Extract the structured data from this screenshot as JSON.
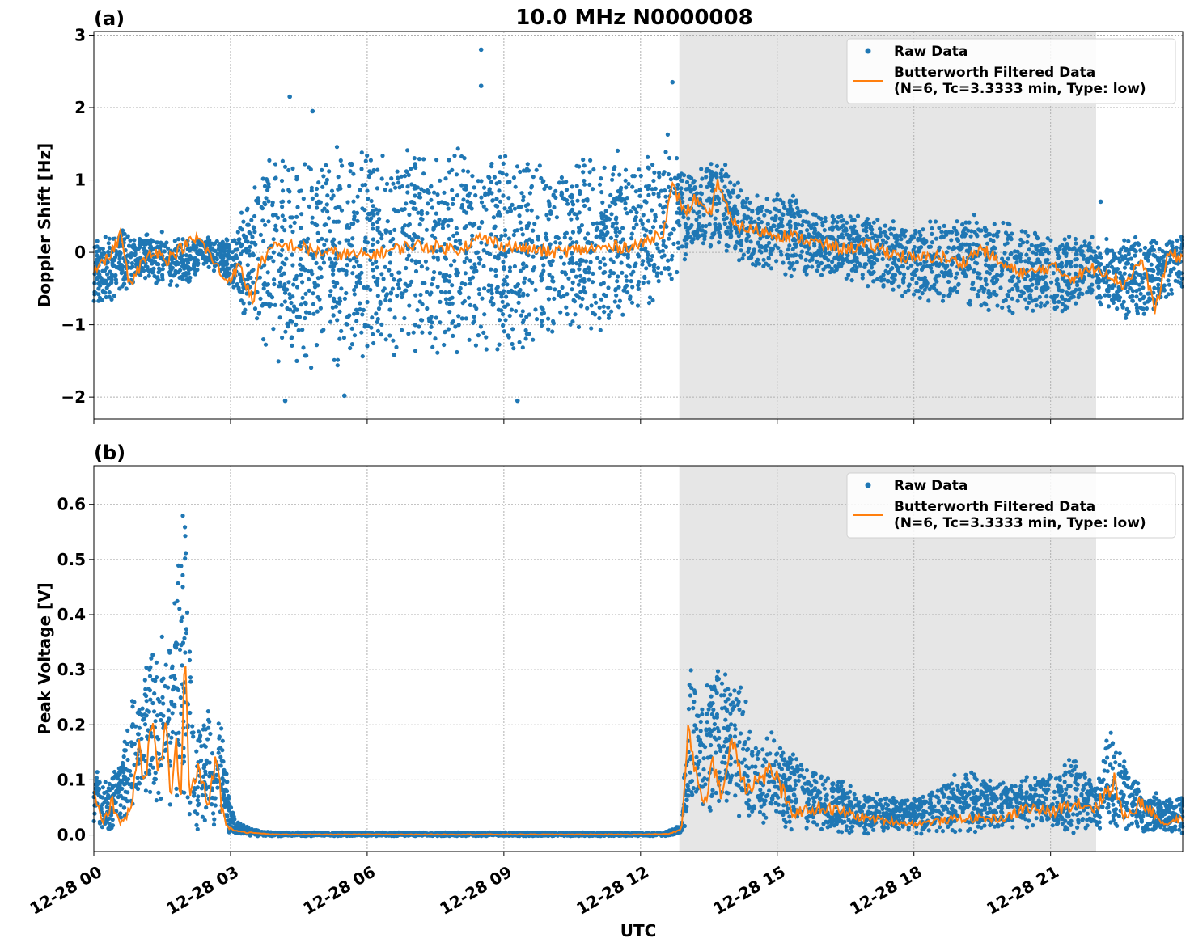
{
  "figure": {
    "title": "10.0 MHz N0000008",
    "xlabel": "UTC"
  },
  "colors": {
    "raw": "#1f77b4",
    "filtered": "#ff7f0e",
    "shade": "#e6e6e6"
  },
  "chart_data": [
    {
      "type": "scatter",
      "panel_label": "(a)",
      "title": "10.0 MHz N0000008",
      "ylabel": "Doppler Shift [Hz]",
      "xlabel": "",
      "x_range_hours": [
        0,
        23.9
      ],
      "ylim": [
        -2.3,
        3.05
      ],
      "yticks": [
        -2,
        -1,
        0,
        1,
        2,
        3
      ],
      "ytick_labels": [
        "−2",
        "−1",
        "0",
        "1",
        "2",
        "3"
      ],
      "grid": true,
      "legend": "top-right",
      "shaded_region_hours": [
        12.85,
        22.0
      ],
      "series": [
        {
          "name": "Raw Data",
          "marker": "dot",
          "envelope_x_hours": [
            0,
            0.5,
            1,
            1.5,
            2,
            2.5,
            3,
            3.6,
            4,
            5,
            6,
            7,
            8,
            9,
            10,
            11,
            12,
            12.6,
            13.1,
            13.7,
            14.5,
            15,
            16,
            17,
            18,
            19,
            20,
            21,
            22,
            23,
            23.9
          ],
          "envelope_upper": [
            0.2,
            0.4,
            0.3,
            0.3,
            0.2,
            0.25,
            0.2,
            1.2,
            1.5,
            1.6,
            1.5,
            1.5,
            1.6,
            1.5,
            1.4,
            1.4,
            1.5,
            1.7,
            1.1,
            1.4,
            0.8,
            0.9,
            0.6,
            0.55,
            0.45,
            0.6,
            0.5,
            0.3,
            0.25,
            0.3,
            0.25
          ],
          "envelope_lower": [
            -0.8,
            -0.7,
            -0.4,
            -0.5,
            -0.5,
            -0.2,
            -0.5,
            -1.5,
            -1.6,
            -1.7,
            -1.6,
            -1.6,
            -1.5,
            -1.5,
            -1.3,
            -1.2,
            -0.9,
            -0.6,
            0.0,
            0.0,
            -0.2,
            -0.3,
            -0.4,
            -0.5,
            -0.7,
            -0.8,
            -0.9,
            -0.9,
            -0.7,
            -1.1,
            -0.5
          ],
          "outliers": [
            [
              8.5,
              2.8
            ],
            [
              8.5,
              2.3
            ],
            [
              4.3,
              2.15
            ],
            [
              4.8,
              1.95
            ],
            [
              4.2,
              -2.05
            ],
            [
              9.3,
              -2.05
            ],
            [
              5.5,
              -1.98
            ],
            [
              12.7,
              2.35
            ],
            [
              22.1,
              0.7
            ]
          ]
        },
        {
          "name": "Butterworth Filtered Data\n(N=6, Tc=3.3333 min, Type: low)",
          "x_hours": [
            0,
            0.3,
            0.6,
            0.8,
            1.0,
            1.3,
            1.6,
            2.0,
            2.3,
            2.6,
            2.9,
            3.2,
            3.5,
            3.6,
            3.9,
            4.3,
            5.0,
            6.0,
            7.0,
            8.0,
            8.5,
            9.0,
            10.0,
            11.0,
            12.0,
            12.5,
            12.7,
            13.0,
            13.2,
            13.5,
            13.7,
            14.0,
            14.5,
            15.0,
            15.5,
            16.0,
            16.5,
            17.0,
            17.5,
            18.0,
            18.5,
            19.0,
            19.5,
            20.0,
            20.5,
            21.0,
            21.5,
            22.0,
            22.3,
            22.6,
            23.0,
            23.3,
            23.6,
            23.9
          ],
          "y": [
            -0.2,
            -0.1,
            0.25,
            -0.5,
            -0.2,
            0.05,
            -0.1,
            0.1,
            0.2,
            -0.1,
            -0.4,
            -0.2,
            -0.7,
            -0.2,
            0.05,
            0.1,
            0.0,
            -0.05,
            0.1,
            0.05,
            0.2,
            0.1,
            0.0,
            0.05,
            0.1,
            0.3,
            0.9,
            0.55,
            0.75,
            0.45,
            1.0,
            0.4,
            0.3,
            0.25,
            0.2,
            0.1,
            0.05,
            0.1,
            0.0,
            -0.1,
            -0.05,
            -0.15,
            0.05,
            -0.2,
            -0.3,
            -0.2,
            -0.35,
            -0.2,
            -0.3,
            -0.45,
            -0.1,
            -0.8,
            0.0,
            -0.1
          ]
        }
      ]
    },
    {
      "type": "scatter",
      "panel_label": "(b)",
      "title": "",
      "ylabel": "Peak Voltage [V]",
      "xlabel": "UTC",
      "x_range_hours": [
        0,
        23.9
      ],
      "ylim": [
        -0.03,
        0.67
      ],
      "yticks": [
        0.0,
        0.1,
        0.2,
        0.3,
        0.4,
        0.5,
        0.6
      ],
      "ytick_labels": [
        "0.0",
        "0.1",
        "0.2",
        "0.3",
        "0.4",
        "0.5",
        "0.6"
      ],
      "xticks_hours": [
        0,
        3,
        6,
        9,
        12,
        15,
        18,
        21
      ],
      "xtick_labels": [
        "12-28 00",
        "12-28 03",
        "12-28 06",
        "12-28 09",
        "12-28 12",
        "12-28 15",
        "12-28 18",
        "12-28 21"
      ],
      "grid": true,
      "legend": "top-right",
      "shaded_region_hours": [
        12.85,
        22.0
      ],
      "series": [
        {
          "name": "Raw Data",
          "marker": "dot",
          "envelope_x_hours": [
            0,
            0.3,
            0.6,
            0.9,
            1.0,
            1.3,
            1.6,
            1.8,
            2.0,
            2.2,
            2.5,
            2.8,
            2.95,
            3.1,
            3.5,
            4,
            12.5,
            12.9,
            13.1,
            13.3,
            13.6,
            13.9,
            14.2,
            14.5,
            14.9,
            15.3,
            16,
            17,
            18,
            19,
            20,
            21,
            21.5,
            22,
            22.3,
            22.6,
            23,
            23.9
          ],
          "envelope_upper": [
            0.13,
            0.1,
            0.15,
            0.3,
            0.25,
            0.4,
            0.35,
            0.47,
            0.64,
            0.2,
            0.25,
            0.22,
            0.08,
            0.03,
            0.01,
            0.005,
            0.005,
            0.02,
            0.38,
            0.25,
            0.34,
            0.3,
            0.31,
            0.18,
            0.2,
            0.15,
            0.12,
            0.08,
            0.07,
            0.12,
            0.1,
            0.12,
            0.15,
            0.1,
            0.21,
            0.15,
            0.08,
            0.07
          ],
          "envelope_lower": [
            0.01,
            0.0,
            0.02,
            0.03,
            0.05,
            0.04,
            0.02,
            0.05,
            0.02,
            0.0,
            0.01,
            0.0,
            0.0,
            0.0,
            -0.002,
            -0.002,
            -0.002,
            0.0,
            0.03,
            0.05,
            0.02,
            0.05,
            0.03,
            0.01,
            0.02,
            0.01,
            0.0,
            0.0,
            0.0,
            0.0,
            0.01,
            0.01,
            0.0,
            0.01,
            0.0,
            0.0,
            0.0,
            0.0
          ]
        },
        {
          "name": "Butterworth Filtered Data\n(N=6, Tc=3.3333 min, Type: low)",
          "x_hours": [
            0,
            0.2,
            0.4,
            0.6,
            0.8,
            1.0,
            1.1,
            1.3,
            1.4,
            1.6,
            1.7,
            1.8,
            1.9,
            2.0,
            2.1,
            2.3,
            2.5,
            2.7,
            2.8,
            2.9,
            3.0,
            3.3,
            4.0,
            8.0,
            12.0,
            12.6,
            12.9,
            13.05,
            13.2,
            13.4,
            13.6,
            13.8,
            14.0,
            14.3,
            14.6,
            14.9,
            15.3,
            16.0,
            17.0,
            18.0,
            19.0,
            20.0,
            20.5,
            21.0,
            21.5,
            22.0,
            22.4,
            22.6,
            23.0,
            23.5,
            23.9
          ],
          "y": [
            0.07,
            0.02,
            0.06,
            0.02,
            0.05,
            0.16,
            0.08,
            0.22,
            0.1,
            0.2,
            0.06,
            0.18,
            0.04,
            0.34,
            0.07,
            0.12,
            0.05,
            0.15,
            0.05,
            0.02,
            0.012,
            0.005,
            0.001,
            0.001,
            0.001,
            0.002,
            0.01,
            0.19,
            0.12,
            0.06,
            0.13,
            0.07,
            0.18,
            0.09,
            0.1,
            0.12,
            0.04,
            0.05,
            0.03,
            0.02,
            0.03,
            0.03,
            0.05,
            0.04,
            0.06,
            0.05,
            0.1,
            0.03,
            0.06,
            0.02,
            0.03
          ]
        }
      ]
    }
  ]
}
